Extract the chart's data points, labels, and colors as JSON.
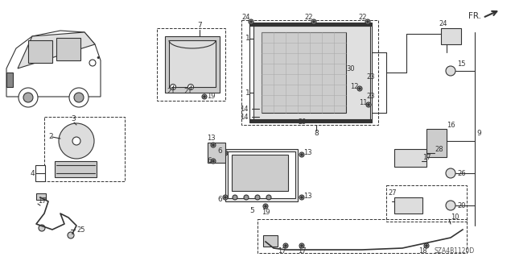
{
  "title": "",
  "bg_color": "#ffffff",
  "diagram_code": "SZA4B1120D",
  "fr_label": "FR.",
  "fig_width": 6.4,
  "fig_height": 3.19,
  "dpi": 100
}
